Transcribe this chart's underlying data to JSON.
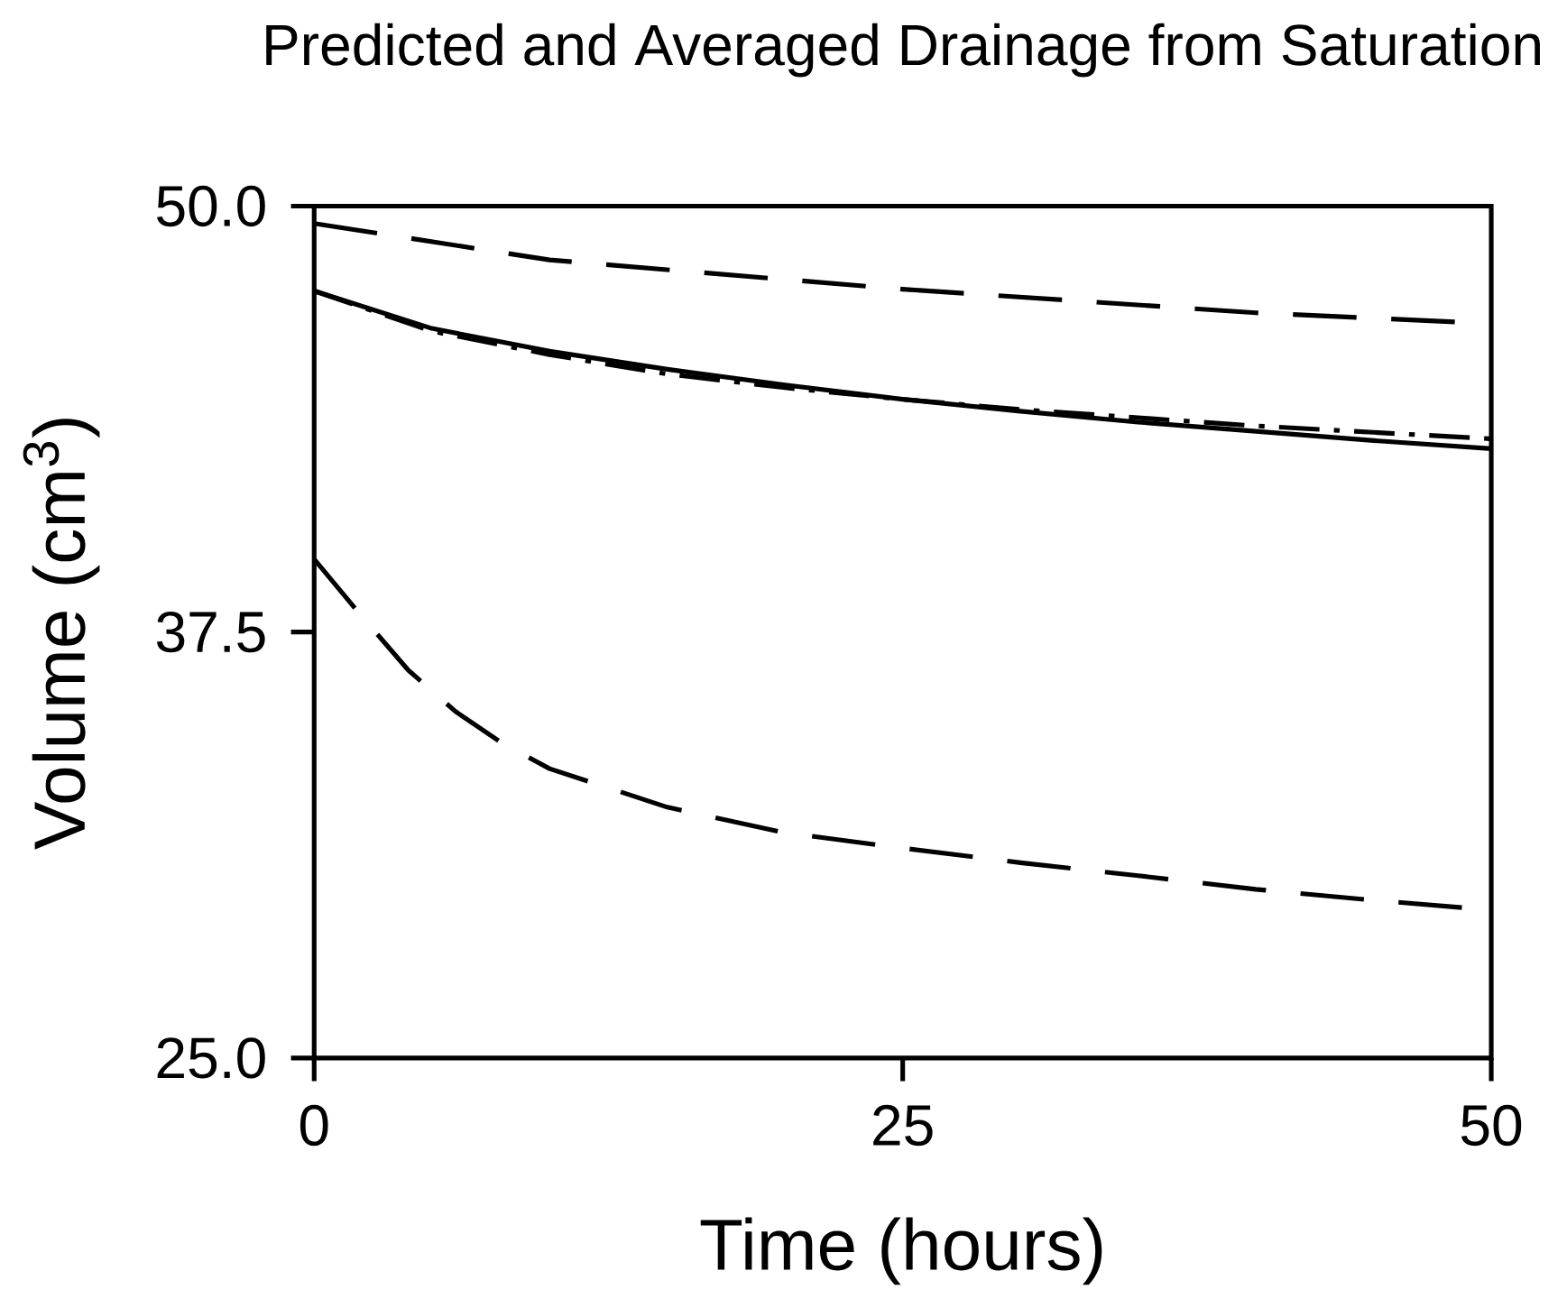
{
  "chart_data": {
    "type": "line",
    "title": "Predicted and Averaged Drainage from Saturation",
    "xlabel": "Time (hours)",
    "ylabel": "Volume (cm$^{3}$)",
    "xlim": [
      0,
      50
    ],
    "ylim": [
      25,
      50
    ],
    "xticks": [
      0,
      25,
      50
    ],
    "yticks": [
      {
        "value": 25,
        "label": "25.0"
      },
      {
        "value": 37.5,
        "label": "37.5"
      },
      {
        "value": 50,
        "label": "50.0"
      }
    ],
    "grid": false,
    "marker": "none",
    "series": [
      {
        "color": "#000000",
        "line_style": "dashed",
        "x": [
          0,
          10,
          25,
          40,
          50
        ],
        "values": [
          49.49,
          48.42,
          47.56,
          46.87,
          46.55
        ]
      },
      {
        "color": "#000000",
        "line_style": "solid",
        "x": [
          0,
          5,
          10,
          15,
          20,
          25,
          30,
          35,
          40,
          45,
          50
        ],
        "values": [
          47.51,
          46.41,
          45.74,
          45.21,
          44.75,
          44.33,
          43.98,
          43.66,
          43.39,
          43.12,
          42.88
        ]
      },
      {
        "color": "#000000",
        "line_style": "dashdot",
        "x": [
          0,
          5,
          10,
          15,
          20,
          25,
          30,
          35,
          40,
          45,
          50
        ],
        "values": [
          47.51,
          46.33,
          45.64,
          45.07,
          44.67,
          44.33,
          44.03,
          43.79,
          43.55,
          43.36,
          43.17
        ]
      },
      {
        "color": "#000000",
        "line_style": "dashed",
        "x": [
          0,
          2,
          4,
          6,
          8,
          10,
          15,
          20,
          25,
          30,
          35,
          40,
          45,
          50
        ],
        "values": [
          39.64,
          37.98,
          36.38,
          35.17,
          34.23,
          33.49,
          32.36,
          31.61,
          31.16,
          30.73,
          30.35,
          29.95,
          29.63,
          29.34
        ]
      }
    ]
  }
}
